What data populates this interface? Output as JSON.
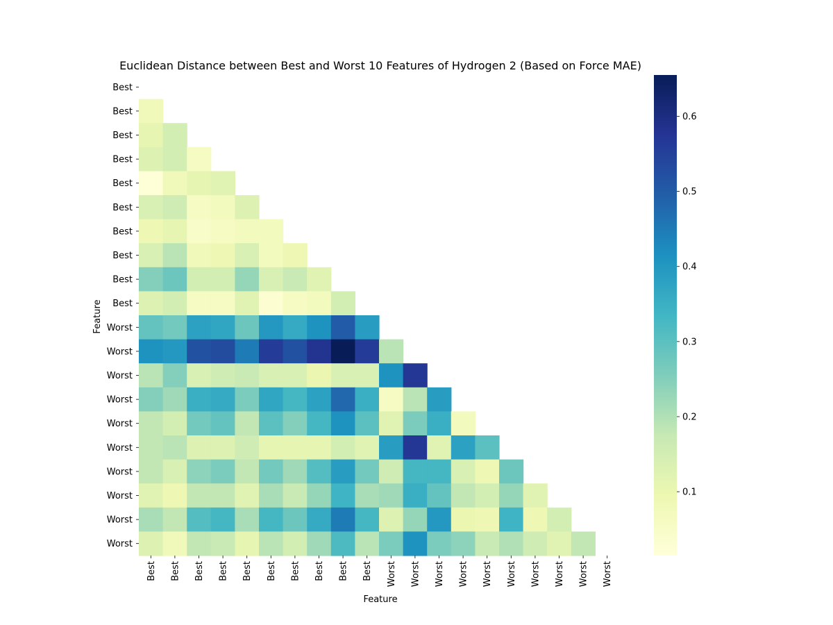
{
  "chart_data": {
    "type": "heatmap",
    "title": "Euclidean Distance between Best and Worst 10 Features of Hydrogen 2 (Based on Force MAE)",
    "xlabel": "Feature",
    "ylabel": "Feature",
    "categories": [
      "Best",
      "Best",
      "Best",
      "Best",
      "Best",
      "Best",
      "Best",
      "Best",
      "Best",
      "Best",
      "Worst",
      "Worst",
      "Worst",
      "Worst",
      "Worst",
      "Worst",
      "Worst",
      "Worst",
      "Worst",
      "Worst"
    ],
    "mask": "upper-triangle-including-diagonal",
    "colormap": "YlGnBu",
    "colorbar": {
      "vmin": 0.015,
      "vmax": 0.655,
      "ticks": [
        0.1,
        0.2,
        0.3,
        0.4,
        0.5,
        0.6
      ]
    },
    "matrix": [
      [],
      [
        0.08
      ],
      [
        0.11,
        0.15
      ],
      [
        0.13,
        0.15,
        0.06
      ],
      [
        0.02,
        0.08,
        0.11,
        0.12
      ],
      [
        0.14,
        0.16,
        0.06,
        0.07,
        0.13
      ],
      [
        0.09,
        0.11,
        0.05,
        0.06,
        0.07,
        0.07
      ],
      [
        0.14,
        0.19,
        0.08,
        0.09,
        0.14,
        0.07,
        0.09
      ],
      [
        0.25,
        0.28,
        0.15,
        0.15,
        0.23,
        0.14,
        0.17,
        0.12
      ],
      [
        0.13,
        0.15,
        0.06,
        0.06,
        0.12,
        0.03,
        0.06,
        0.07,
        0.15
      ],
      [
        0.29,
        0.27,
        0.38,
        0.37,
        0.28,
        0.4,
        0.36,
        0.41,
        0.5,
        0.39
      ],
      [
        0.41,
        0.4,
        0.52,
        0.53,
        0.45,
        0.56,
        0.52,
        0.58,
        0.655,
        0.56,
        0.19
      ],
      [
        0.19,
        0.25,
        0.14,
        0.16,
        0.17,
        0.14,
        0.14,
        0.1,
        0.14,
        0.14,
        0.41,
        0.57
      ],
      [
        0.25,
        0.22,
        0.35,
        0.36,
        0.26,
        0.37,
        0.33,
        0.38,
        0.48,
        0.35,
        0.06,
        0.19,
        0.39
      ],
      [
        0.18,
        0.15,
        0.27,
        0.29,
        0.18,
        0.3,
        0.25,
        0.33,
        0.41,
        0.3,
        0.12,
        0.26,
        0.35,
        0.07
      ],
      [
        0.18,
        0.19,
        0.13,
        0.13,
        0.16,
        0.11,
        0.11,
        0.11,
        0.15,
        0.12,
        0.39,
        0.57,
        0.12,
        0.38,
        0.3
      ],
      [
        0.18,
        0.14,
        0.24,
        0.26,
        0.18,
        0.27,
        0.22,
        0.31,
        0.39,
        0.27,
        0.16,
        0.33,
        0.33,
        0.14,
        0.09,
        0.28
      ],
      [
        0.12,
        0.09,
        0.18,
        0.18,
        0.12,
        0.21,
        0.17,
        0.23,
        0.34,
        0.21,
        0.22,
        0.35,
        0.29,
        0.18,
        0.15,
        0.23,
        0.12
      ],
      [
        0.21,
        0.18,
        0.31,
        0.33,
        0.21,
        0.33,
        0.28,
        0.36,
        0.45,
        0.33,
        0.13,
        0.23,
        0.4,
        0.1,
        0.09,
        0.34,
        0.09,
        0.15
      ],
      [
        0.13,
        0.08,
        0.18,
        0.17,
        0.11,
        0.19,
        0.15,
        0.22,
        0.32,
        0.19,
        0.26,
        0.41,
        0.26,
        0.24,
        0.17,
        0.2,
        0.16,
        0.12,
        0.18
      ]
    ]
  }
}
